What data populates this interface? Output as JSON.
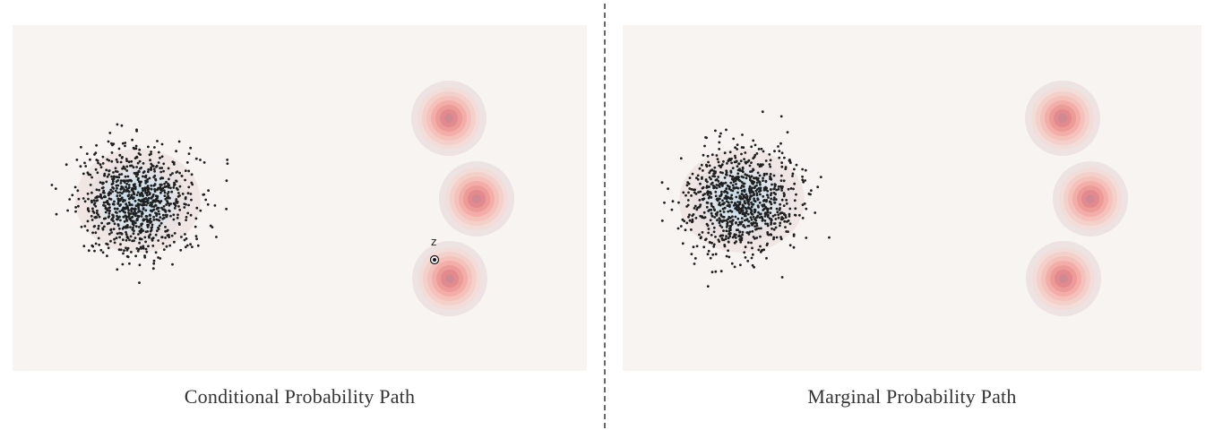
{
  "panels": {
    "left": {
      "caption": "Conditional Probability Path",
      "marker_label": "z"
    },
    "right": {
      "caption": "Marginal Probability Path"
    }
  },
  "colors": {
    "panel_background": "#f8f4f2",
    "target_mode": "#e7848a",
    "source_density": "#cfe1ea",
    "samples": "#1f1f1f",
    "divider": "#666666"
  }
}
